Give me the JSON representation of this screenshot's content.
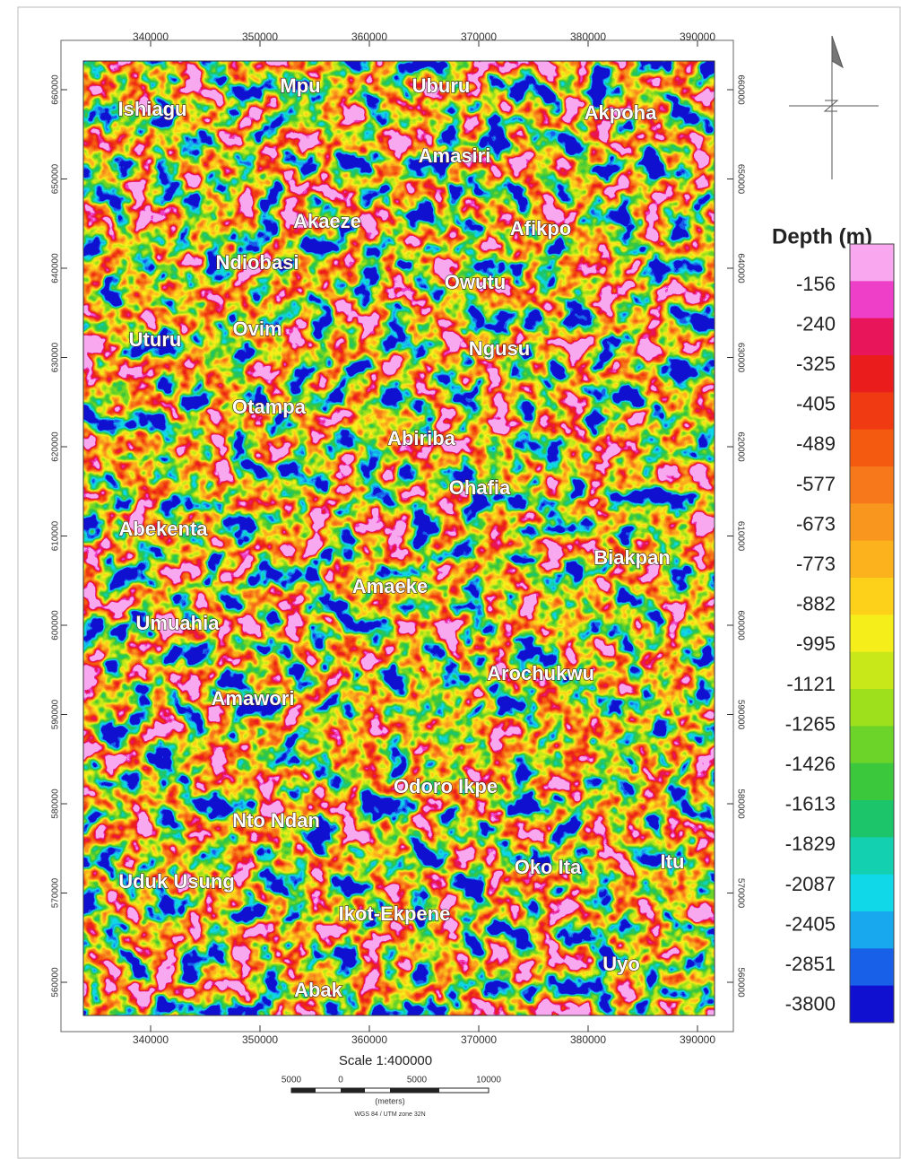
{
  "map": {
    "eastings": [
      340000,
      350000,
      360000,
      370000,
      380000,
      390000
    ],
    "northings": [
      660000,
      650000,
      640000,
      630000,
      620000,
      610000,
      600000,
      590000,
      580000,
      570000,
      560000
    ],
    "towns": [
      "Ishiagu",
      "Mpu",
      "Uburu",
      "Akpoha",
      "Amasiri",
      "Akaeze",
      "Afikpo",
      "Ndiobasi",
      "Owutu",
      "Uturu",
      "Ovim",
      "Ngusu",
      "Otampa",
      "Abiriba",
      "Ohafia",
      "Abekenta",
      "Biakpan",
      "Amaeke",
      "Umuahia",
      "Arochukwu",
      "Amawori",
      "Odoro Ikpe",
      "Nto Ndan",
      "Itu",
      "Oko Ita",
      "Uduk Usung",
      "Ikot-Ekpene",
      "Uyo",
      "Abak"
    ],
    "legend": {
      "title": "Depth (m)",
      "labels": [
        -156,
        -240,
        -325,
        -405,
        -489,
        -577,
        -673,
        -773,
        -882,
        -995,
        -1121,
        -1265,
        -1426,
        -1613,
        -1829,
        -2087,
        -2405,
        -2851,
        -3800
      ],
      "colors": [
        "#f9a8ef",
        "#ee3fc8",
        "#e8155a",
        "#ea1c1c",
        "#f03a12",
        "#f45a10",
        "#f6781a",
        "#f8961e",
        "#fbb21c",
        "#fdd01a",
        "#f6ee1a",
        "#c8e81a",
        "#9ee01c",
        "#6cd428",
        "#3cc83c",
        "#1cc46a",
        "#12d0b0",
        "#10d8e8",
        "#18a8ee",
        "#1860e8",
        "#1010d0"
      ]
    },
    "scale": {
      "text": "Scale 1:400000",
      "bar_labels": [
        5000,
        0,
        5000,
        10000
      ],
      "units": "(meters)",
      "projection": "WGS 84 / UTM zone 32N"
    }
  }
}
